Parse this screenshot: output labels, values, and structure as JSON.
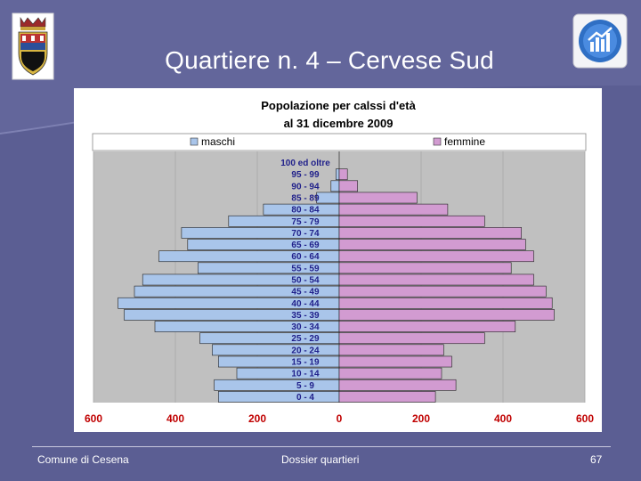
{
  "slide": {
    "title": "Quartiere n. 4 – Cervese Sud",
    "footer_left": "Comune di Cesena",
    "footer_center": "Dossier quartieri",
    "page_number": "67",
    "background_color": "#5b5e93"
  },
  "icons": {
    "left_logo": "city-crest-icon",
    "right_logo": "statistics-chart-icon"
  },
  "chart_data": {
    "type": "bar",
    "subtype": "population-pyramid",
    "title_line1": "Popolazione per calssi d'età",
    "title_line2": "al 31 dicembre 2009",
    "legend_position": "top",
    "categories": [
      "100 ed oltre",
      "95 - 99",
      "90 - 94",
      "85 - 89",
      "80 - 84",
      "75 - 79",
      "70 - 74",
      "65 - 69",
      "60 - 64",
      "55 - 59",
      "50 - 54",
      "45 - 49",
      "40 - 44",
      "35 - 39",
      "30 - 34",
      "25 - 29",
      "20 - 24",
      "15 - 19",
      "10 - 14",
      "5 -  9",
      "0 -  4"
    ],
    "series": [
      {
        "name": "maschi",
        "color": "#a9c5ea",
        "values": [
          0,
          8,
          20,
          55,
          185,
          270,
          385,
          370,
          440,
          345,
          480,
          500,
          540,
          525,
          450,
          340,
          310,
          295,
          250,
          305,
          295
        ]
      },
      {
        "name": "femmine",
        "color": "#d29bd1",
        "values": [
          0,
          20,
          45,
          190,
          265,
          355,
          445,
          455,
          475,
          420,
          475,
          505,
          520,
          525,
          430,
          355,
          255,
          275,
          250,
          285,
          235
        ]
      }
    ],
    "x_ticks": [
      "600",
      "400",
      "200",
      "0",
      "200",
      "400",
      "600"
    ],
    "xlim": [
      -600,
      600
    ],
    "grid": true
  }
}
